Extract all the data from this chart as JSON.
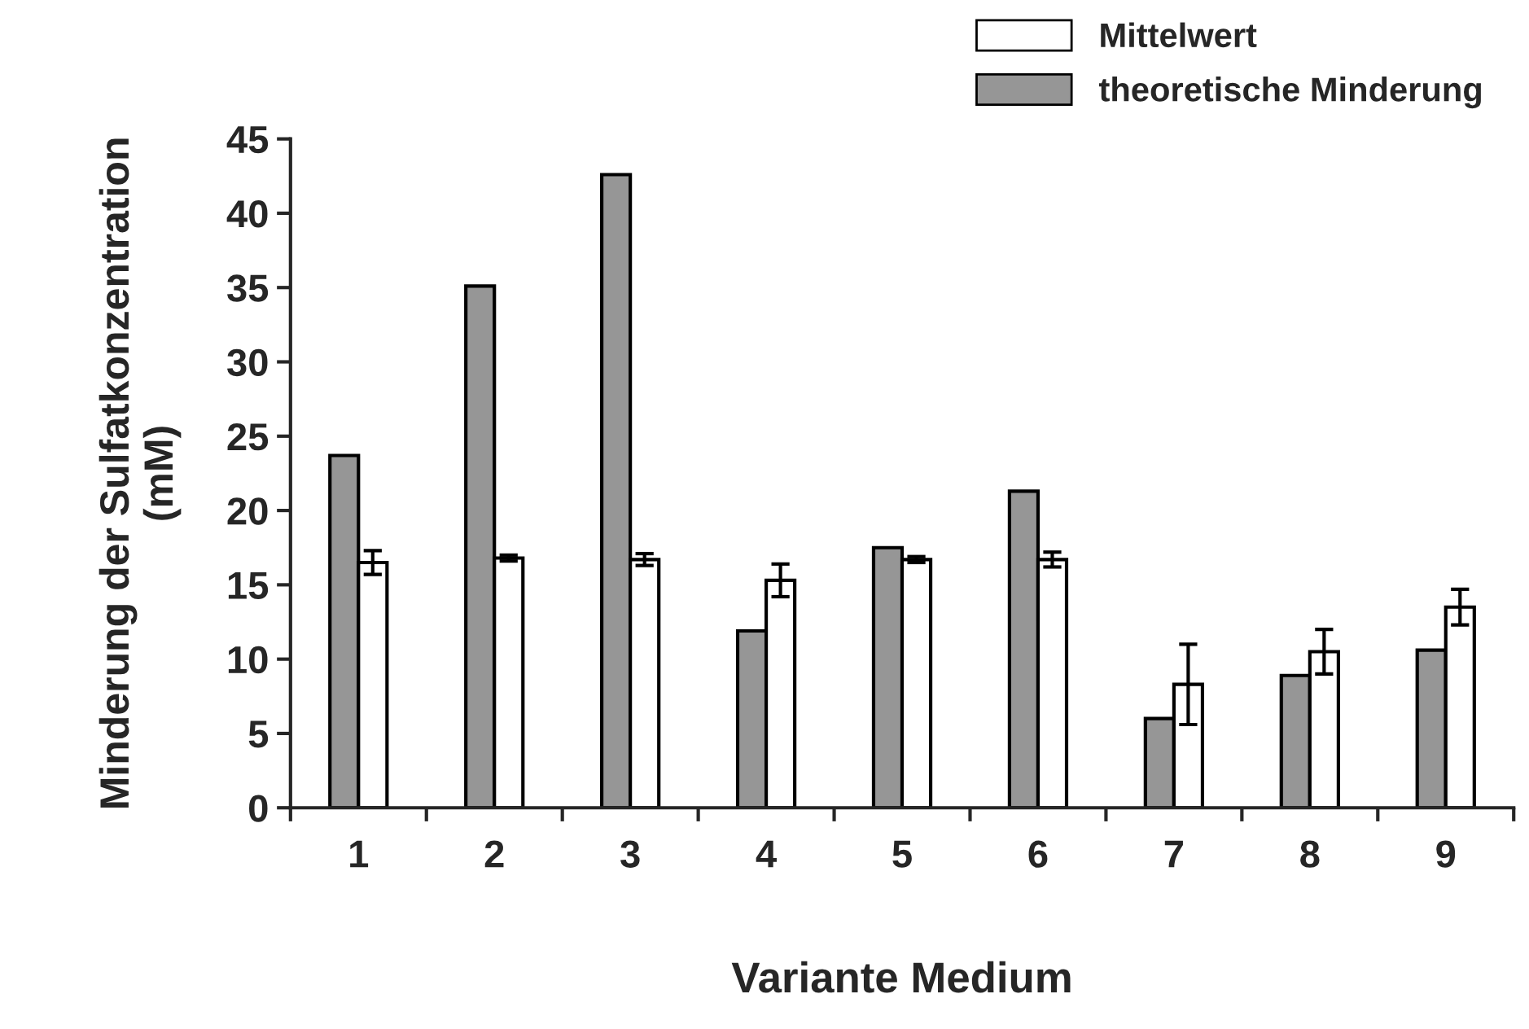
{
  "chart_data": {
    "type": "bar",
    "xlabel": "Variante Medium",
    "ylabel": "Minderung der Sulfatkonzentration\n(mM)",
    "categories": [
      "1",
      "2",
      "3",
      "4",
      "5",
      "6",
      "7",
      "8",
      "9"
    ],
    "series": [
      {
        "name": "theoretische Minderung",
        "color": "#969696",
        "values": [
          23.7,
          35.1,
          42.6,
          11.9,
          17.5,
          21.3,
          6.0,
          8.9,
          10.6
        ]
      },
      {
        "name": "Mittelwert",
        "color": "#ffffff",
        "values": [
          16.5,
          16.8,
          16.7,
          15.3,
          16.7,
          16.7,
          8.3,
          10.5,
          13.5
        ],
        "errors": [
          0.8,
          0.2,
          0.4,
          1.1,
          0.2,
          0.5,
          2.7,
          1.5,
          1.2
        ]
      }
    ],
    "ylim": [
      0,
      45
    ],
    "yticks": [
      0,
      5,
      10,
      15,
      20,
      25,
      30,
      35,
      40,
      45
    ],
    "grid": false,
    "legend": "top right"
  }
}
